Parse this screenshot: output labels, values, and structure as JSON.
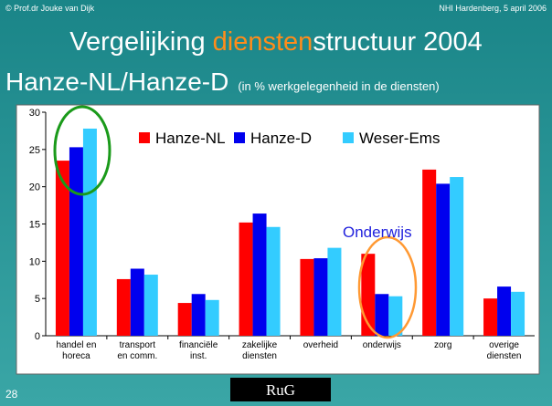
{
  "header": {
    "left": "© Prof.dr Jouke van Dijk",
    "right": "NHI Hardenberg, 5 april 2006"
  },
  "title": {
    "part1": "Vergelijking ",
    "highlight": "diensten",
    "part2": "structuur 2004",
    "line2": "Hanze-NL/Hanze-D",
    "note": "(in % werkgelegenheid in de diensten)"
  },
  "footer": {
    "page": "28",
    "logo": "RuG"
  },
  "chart_data": {
    "type": "bar",
    "categories": [
      "handel en\nhoreca",
      "transport\nen comm.",
      "financiële\ninst.",
      "zakelijke\ndiensten",
      "overheid",
      "onderwijs",
      "zorg",
      "overige\ndiensten"
    ],
    "series": [
      {
        "name": "Hanze-NL",
        "color": "#ff0000",
        "values": [
          23.5,
          7.6,
          4.4,
          15.2,
          10.3,
          11.0,
          22.3,
          5.0
        ]
      },
      {
        "name": "Hanze-D",
        "color": "#0000ee",
        "values": [
          25.3,
          9.0,
          5.6,
          16.4,
          10.4,
          5.6,
          20.4,
          6.6
        ]
      },
      {
        "name": "Weser-Ems",
        "color": "#33ccff",
        "values": [
          27.8,
          8.2,
          4.8,
          14.6,
          11.8,
          5.3,
          21.3,
          5.9
        ]
      }
    ],
    "ylim": [
      0,
      30
    ],
    "yticks": [
      0,
      5,
      10,
      15,
      20,
      25,
      30
    ],
    "grid": false,
    "annotation": "Onderwijs"
  }
}
